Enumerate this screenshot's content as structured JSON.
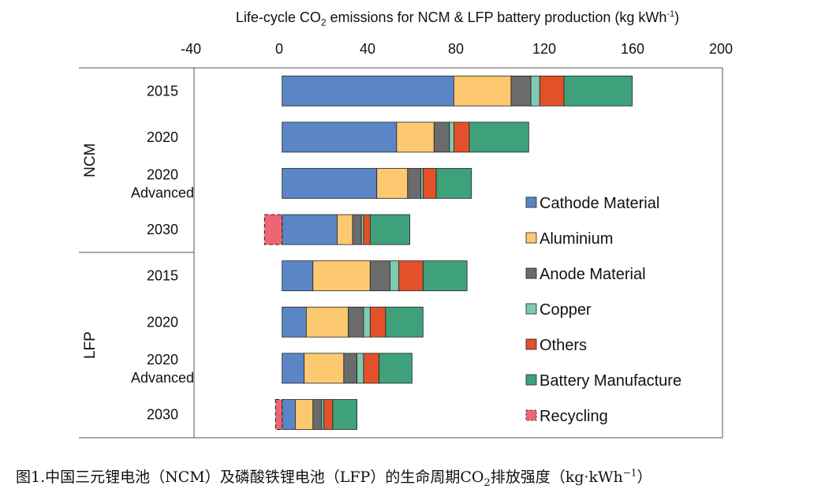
{
  "title_parts": {
    "before_sub": "Life-cycle CO",
    "sub": "2",
    "middle": " emissions for NCM & LFP battery production (kg kWh",
    "sup": "-1",
    "after_sup": ")"
  },
  "chart_data": {
    "type": "stacked-horizontal-bar",
    "title": "Life-cycle CO2 emissions for NCM & LFP battery production (kg kWh-1)",
    "xlim": [
      -40,
      200
    ],
    "xticks": [
      -40,
      0,
      40,
      80,
      120,
      160,
      200
    ],
    "xtick_labels": [
      "-40",
      "0",
      "40",
      "80",
      "120",
      "160",
      "200"
    ],
    "legend_position": "right",
    "components": [
      {
        "name": "Cathode Material",
        "color": "#5b86c6"
      },
      {
        "name": "Aluminium",
        "color": "#fcc870"
      },
      {
        "name": "Anode Material",
        "color": "#6b6b6b"
      },
      {
        "name": "Copper",
        "color": "#7fcab1"
      },
      {
        "name": "Others",
        "color": "#e2512a"
      },
      {
        "name": "Battery Manufacture",
        "color": "#3fa17c"
      },
      {
        "name": "Recycling",
        "color": "#ee6673"
      }
    ],
    "groups": [
      {
        "name": "NCM",
        "bars": [
          {
            "label": [
              "2015"
            ],
            "values": {
              "Cathode Material": 78,
              "Aluminium": 26,
              "Anode Material": 9,
              "Copper": 4,
              "Others": 11,
              "Battery Manufacture": 31,
              "Recycling": 0
            }
          },
          {
            "label": [
              "2020"
            ],
            "values": {
              "Cathode Material": 52,
              "Aluminium": 17,
              "Anode Material": 7,
              "Copper": 2,
              "Others": 7,
              "Battery Manufacture": 27,
              "Recycling": 0
            }
          },
          {
            "label": [
              "2020",
              "Advanced"
            ],
            "values": {
              "Cathode Material": 43,
              "Aluminium": 14,
              "Anode Material": 6,
              "Copper": 1,
              "Others": 6,
              "Battery Manufacture": 16,
              "Recycling": 0
            }
          },
          {
            "label": [
              "2030"
            ],
            "values": {
              "Cathode Material": 25,
              "Aluminium": 7,
              "Anode Material": 4,
              "Copper": 1,
              "Others": 3,
              "Battery Manufacture": 18,
              "Recycling": -8
            }
          }
        ]
      },
      {
        "name": "LFP",
        "bars": [
          {
            "label": [
              "2015"
            ],
            "values": {
              "Cathode Material": 14,
              "Aluminium": 26,
              "Anode Material": 9,
              "Copper": 4,
              "Others": 11,
              "Battery Manufacture": 20,
              "Recycling": 0
            }
          },
          {
            "label": [
              "2020"
            ],
            "values": {
              "Cathode Material": 11,
              "Aluminium": 19,
              "Anode Material": 7,
              "Copper": 3,
              "Others": 7,
              "Battery Manufacture": 17,
              "Recycling": 0
            }
          },
          {
            "label": [
              "2020",
              "Advanced"
            ],
            "values": {
              "Cathode Material": 10,
              "Aluminium": 18,
              "Anode Material": 6,
              "Copper": 3,
              "Others": 7,
              "Battery Manufacture": 15,
              "Recycling": 0
            }
          },
          {
            "label": [
              "2030"
            ],
            "values": {
              "Cathode Material": 6,
              "Aluminium": 8,
              "Anode Material": 4,
              "Copper": 1,
              "Others": 4,
              "Battery Manufacture": 11,
              "Recycling": -3
            }
          }
        ]
      }
    ]
  },
  "caption_parts": {
    "before_sub": "图1.中国三元锂电池（NCM）及磷酸铁锂电池（LFP）的生命周期CO",
    "sub": "2",
    "middle": "排放强度（kg·kWh",
    "sup": "−1",
    "after_sup": "）"
  }
}
